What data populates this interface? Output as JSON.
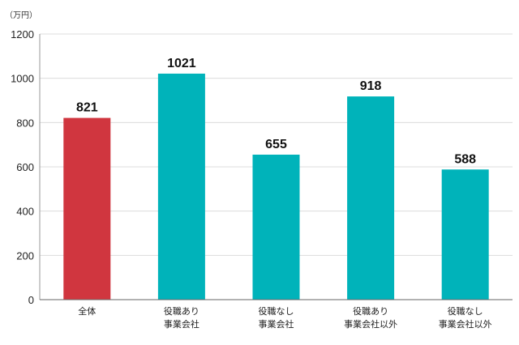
{
  "unit_label": "（万円）",
  "chart_data": {
    "type": "bar",
    "categories": [
      [
        "全体"
      ],
      [
        "役職あり",
        "事業会社"
      ],
      [
        "役職なし",
        "事業会社"
      ],
      [
        "役職あり",
        "事業会社以外"
      ],
      [
        "役職なし",
        "事業会社以外"
      ]
    ],
    "values": [
      821,
      1021,
      655,
      918,
      588
    ],
    "data_labels": [
      "821",
      "1021",
      "655",
      "918",
      "588"
    ],
    "bar_colors": [
      "#d0363f",
      "#00b3ba",
      "#00b3ba",
      "#00b3ba",
      "#00b3ba"
    ],
    "ylim": [
      0,
      1200
    ],
    "yticks": [
      "0",
      "200",
      "400",
      "600",
      "800",
      "1000",
      "1200"
    ],
    "grid": true,
    "title": "",
    "xlabel": "",
    "ylabel": ""
  }
}
